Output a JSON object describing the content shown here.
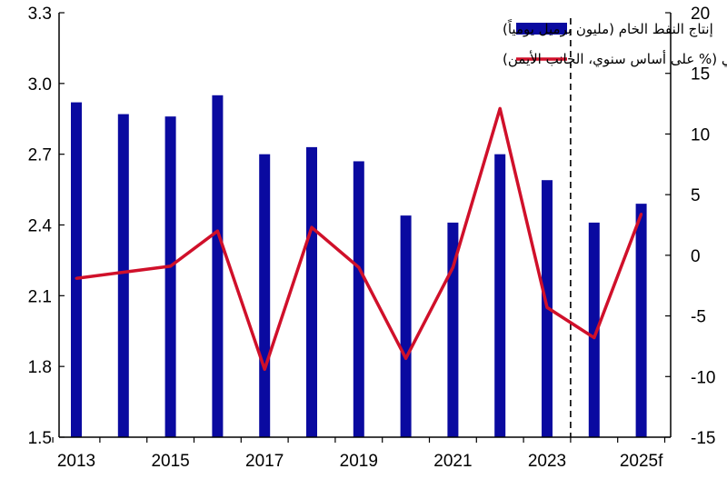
{
  "chart_data": {
    "type": "bar",
    "categories": [
      "2013",
      "2014",
      "2015",
      "2016",
      "2017",
      "2018",
      "2019",
      "2020",
      "2021",
      "2022",
      "2023",
      "2024",
      "2025f"
    ],
    "x_tick_labels": [
      "2013",
      "2015",
      "2017",
      "2019",
      "2021",
      "2023",
      "2025f"
    ],
    "series": [
      {
        "name": "إنتاج النفط الخام (مليون برميل يومياً)",
        "type": "bar",
        "axis": "left",
        "color": "#0a0aa0",
        "values": [
          2.92,
          2.87,
          2.86,
          2.95,
          2.7,
          2.73,
          2.67,
          2.44,
          2.41,
          2.7,
          2.59,
          2.41,
          2.49
        ]
      },
      {
        "name": "نمو القطاع النفطي الحقيقي (% على أساس سنوي، الجانب الأيمن)",
        "type": "line",
        "axis": "right",
        "color": "#d0102a",
        "values": [
          -1.9,
          -1.4,
          -0.9,
          2.0,
          -9.4,
          2.3,
          -1.0,
          -8.5,
          -1.0,
          12.1,
          -4.3,
          -6.8,
          3.4
        ]
      }
    ],
    "y_left": {
      "ylim": [
        1.5,
        3.3
      ],
      "ticks": [
        "1.5",
        "1.8",
        "2.1",
        "2.4",
        "2.7",
        "3.0",
        "3.3"
      ]
    },
    "y_right": {
      "ylim": [
        -15,
        20
      ],
      "ticks": [
        "-15",
        "-10",
        "-5",
        "0",
        "5",
        "10",
        "15",
        "20"
      ]
    },
    "forecast_divider_between": [
      "2023",
      "2024"
    ],
    "legend_position": "top-right",
    "grid": false
  }
}
